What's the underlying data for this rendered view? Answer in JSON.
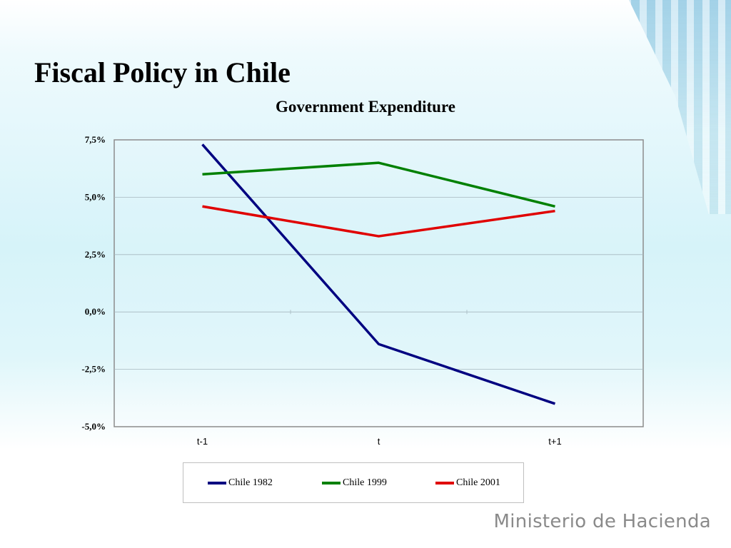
{
  "slide": {
    "title": "Fiscal Policy in Chile",
    "footer": "Ministerio de Hacienda"
  },
  "chart_data": {
    "type": "line",
    "title": "Government Expenditure",
    "xlabel": "",
    "ylabel": "",
    "categories": [
      "t-1",
      "t",
      "t+1"
    ],
    "ylim": [
      -5.0,
      7.5
    ],
    "yticks": [
      7.5,
      5.0,
      2.5,
      0.0,
      -2.5,
      -5.0
    ],
    "ytick_labels": [
      "7,5%",
      "5,0%",
      "2,5%",
      "0,0%",
      "-2,5%",
      "-5,0%"
    ],
    "grid": true,
    "legend_position": "bottom",
    "series": [
      {
        "name": "Chile 1982",
        "values": [
          7.3,
          -1.4,
          -4.0
        ],
        "color": "#000080"
      },
      {
        "name": "Chile 1999",
        "values": [
          6.0,
          6.5,
          4.6
        ],
        "color": "#008000"
      },
      {
        "name": "Chile 2001",
        "values": [
          4.6,
          3.3,
          4.4
        ],
        "color": "#e00000"
      }
    ]
  }
}
